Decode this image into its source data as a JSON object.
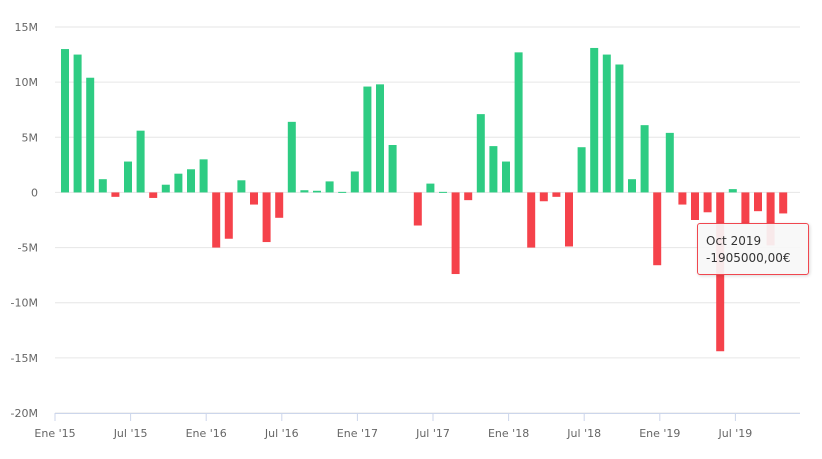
{
  "chart_data": {
    "type": "bar",
    "title": "",
    "xlabel": "",
    "ylabel": "",
    "ylim": [
      -20000000,
      15000000
    ],
    "y_ticks": [
      "15M",
      "10M",
      "5M",
      "0",
      "-5M",
      "-10M",
      "-15M",
      "-20M"
    ],
    "y_tick_values": [
      15000000,
      10000000,
      5000000,
      0,
      -5000000,
      -10000000,
      -15000000,
      -20000000
    ],
    "x_tick_labels": [
      "Ene '15",
      "Jul '15",
      "Ene '16",
      "Jul '16",
      "Ene '17",
      "Jul '17",
      "Ene '18",
      "Jul '18",
      "Ene '19",
      "Jul '19"
    ],
    "grid": true,
    "colors": {
      "positive": "#2ecc83",
      "negative": "#f5424b"
    },
    "categories": [
      "Jan 2015",
      "Feb 2015",
      "Mar 2015",
      "Apr 2015",
      "May 2015",
      "Jun 2015",
      "Jul 2015",
      "Aug 2015",
      "Sep 2015",
      "Oct 2015",
      "Nov 2015",
      "Dec 2015",
      "Jan 2016",
      "Feb 2016",
      "Mar 2016",
      "Apr 2016",
      "May 2016",
      "Jun 2016",
      "Jul 2016",
      "Aug 2016",
      "Sep 2016",
      "Oct 2016",
      "Nov 2016",
      "Dec 2016",
      "Jan 2017",
      "Feb 2017",
      "Mar 2017",
      "Apr 2017",
      "May 2017",
      "Jun 2017",
      "Jul 2017",
      "Aug 2017",
      "Sep 2017",
      "Oct 2017",
      "Nov 2017",
      "Dec 2017",
      "Jan 2018",
      "Feb 2018",
      "Mar 2018",
      "Apr 2018",
      "May 2018",
      "Jun 2018",
      "Jul 2018",
      "Aug 2018",
      "Sep 2018",
      "Oct 2018",
      "Nov 2018",
      "Dec 2018",
      "Jan 2019",
      "Feb 2019",
      "Mar 2019",
      "Apr 2019",
      "May 2019",
      "Jun 2019",
      "Jul 2019",
      "Aug 2019",
      "Sep 2019",
      "Oct 2019"
    ],
    "values": [
      13000000,
      12500000,
      10400000,
      1200000,
      -400000,
      2800000,
      5600000,
      -500000,
      700000,
      1700000,
      2100000,
      3000000,
      -5000000,
      -4200000,
      1100000,
      -1100000,
      -4500000,
      -2300000,
      6400000,
      200000,
      150000,
      1000000,
      50000,
      1900000,
      9600000,
      9800000,
      4300000,
      0,
      -3000000,
      800000,
      50000,
      -7400000,
      -700000,
      7100000,
      4200000,
      2800000,
      12700000,
      -5000000,
      -800000,
      -400000,
      -4900000,
      4100000,
      13100000,
      12500000,
      11600000,
      1200000,
      6100000,
      -6600000,
      5400000,
      -1100000,
      -2500000,
      -1800000,
      -14400000,
      300000,
      -2900000,
      -1700000,
      -4800000,
      -1905000
    ]
  },
  "tooltip": {
    "title": "Oct 2019",
    "value": "-1905000,00€"
  }
}
